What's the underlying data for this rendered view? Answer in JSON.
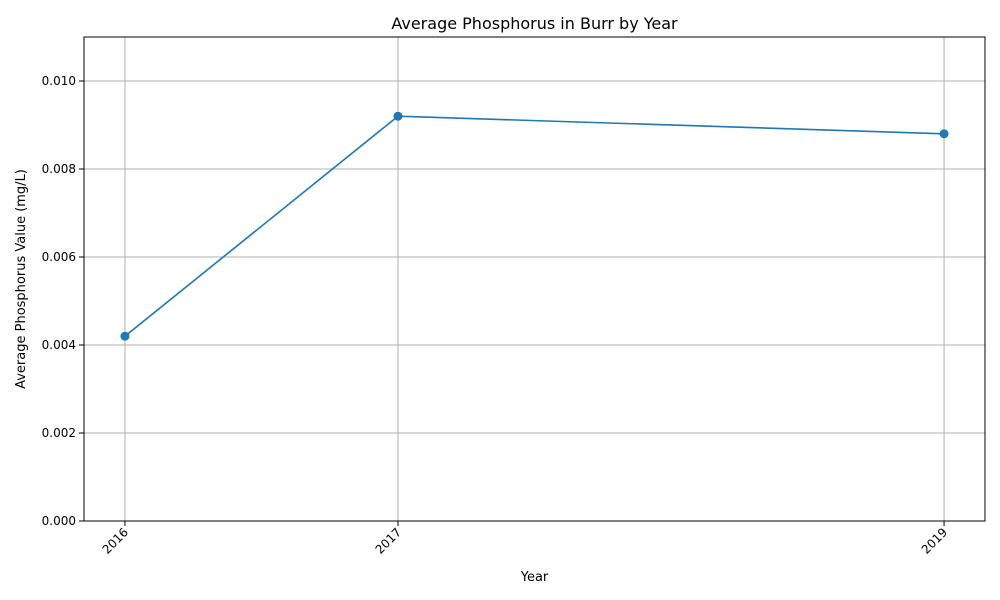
{
  "chart_data": {
    "type": "line",
    "title": "Average Phosphorus in Burr by Year",
    "xlabel": "Year",
    "ylabel": "Average Phosphorus Value (mg/L)",
    "x": [
      2016,
      2017,
      2019
    ],
    "xticks": [
      "2016",
      "2017",
      "2019"
    ],
    "xlim": [
      2015.85,
      2019.15
    ],
    "ylim": [
      0,
      0.011
    ],
    "yticks": [
      0,
      0.002,
      0.004,
      0.006,
      0.008,
      0.01
    ],
    "ytick_labels": [
      "0.000",
      "0.002",
      "0.004",
      "0.006",
      "0.008",
      "0.010"
    ],
    "series": [
      {
        "values": [
          0.0042,
          0.0092,
          0.0088
        ],
        "color": "#1f77b4",
        "marker": "circle"
      }
    ],
    "grid": true,
    "legend": "none"
  }
}
